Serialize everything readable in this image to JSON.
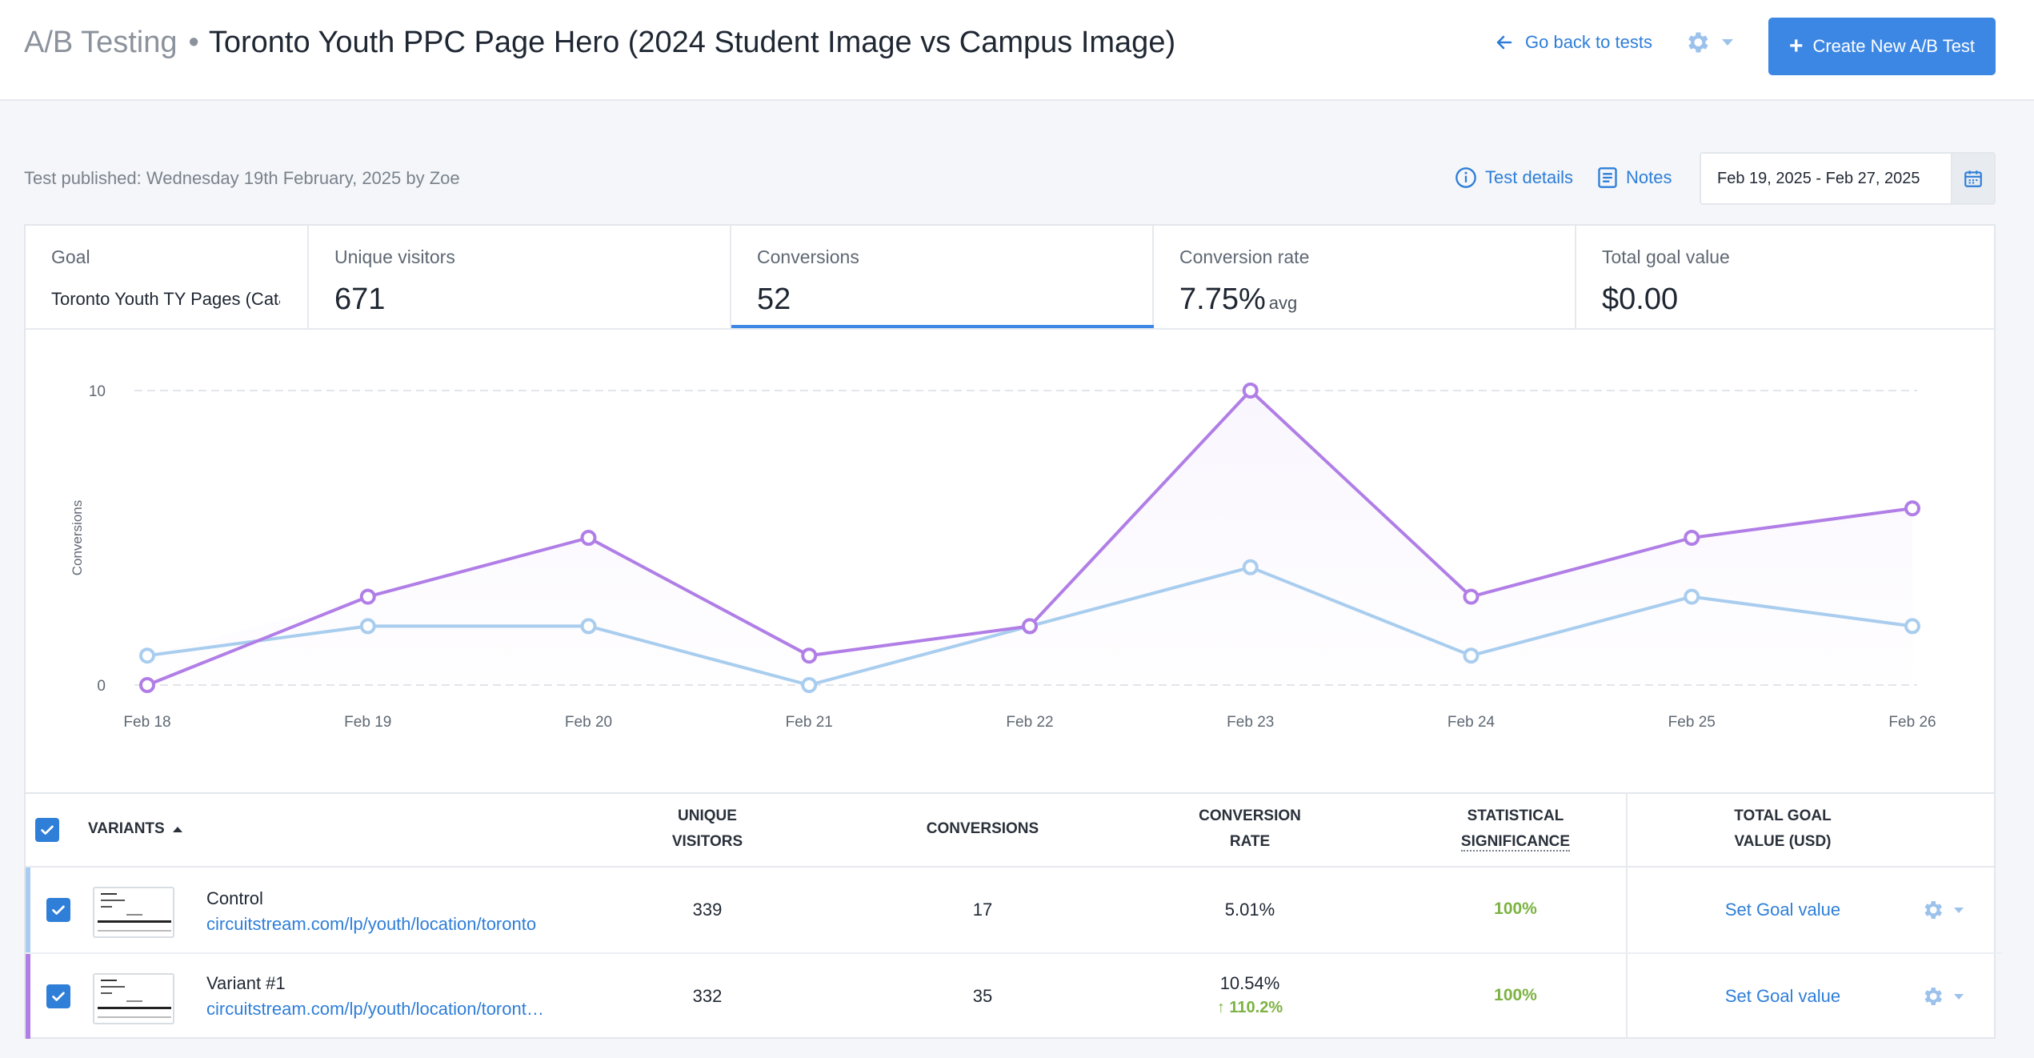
{
  "header": {
    "section": "A/B Testing",
    "separator": "•",
    "test_title": "Toronto Youth PPC Page Hero (2024 Student Image vs Campus Image)",
    "back_label": "Go back to tests",
    "create_label": "Create New A/B Test"
  },
  "subheader": {
    "published": "Test published: Wednesday 19th February, 2025 by Zoe",
    "test_details_label": "Test details",
    "notes_label": "Notes",
    "date_range": "Feb 19, 2025 - Feb 27, 2025"
  },
  "stats": {
    "goal_label": "Goal",
    "goal_value": "Toronto Youth TY Pages (Catalog)",
    "visitors_label": "Unique visitors",
    "visitors_value": "671",
    "conversions_label": "Conversions",
    "conversions_value": "52",
    "rate_label": "Conversion rate",
    "rate_value": "7.75%",
    "rate_suffix": "avg",
    "goal_value_label": "Total goal value",
    "goal_value_value": "$0.00"
  },
  "chart_data": {
    "type": "line",
    "ylabel": "Conversions",
    "xlabel": "",
    "ylim": [
      0,
      10
    ],
    "yticks": [
      "0",
      "10"
    ],
    "categories": [
      "Feb 18",
      "Feb 19",
      "Feb 20",
      "Feb 21",
      "Feb 22",
      "Feb 23",
      "Feb 24",
      "Feb 25",
      "Feb 26"
    ],
    "series": [
      {
        "color": "#a8cdee",
        "values": [
          1,
          2,
          2,
          0,
          2,
          4,
          1,
          3,
          2
        ]
      },
      {
        "color": "#b07ee6",
        "values": [
          0,
          3,
          5,
          1,
          2,
          10,
          3,
          5,
          6
        ]
      }
    ]
  },
  "table": {
    "headers": {
      "variants": "VARIANTS",
      "visitors_1": "UNIQUE",
      "visitors_2": "VISITORS",
      "conversions": "CONVERSIONS",
      "rate_1": "CONVERSION",
      "rate_2": "RATE",
      "sig_1": "STATISTICAL",
      "sig_2": "SIGNIFICANCE",
      "goal_1": "TOTAL GOAL",
      "goal_2": "VALUE (USD)"
    },
    "rows": [
      {
        "name": "Control",
        "url": "circuitstream.com/lp/youth/location/toronto",
        "visitors": "339",
        "conversions": "17",
        "rate": "5.01%",
        "lift": "",
        "significance": "100%",
        "goal_action": "Set Goal value",
        "color": "#a8cdee"
      },
      {
        "name": "Variant #1",
        "url": "circuitstream.com/lp/youth/location/toront…",
        "visitors": "332",
        "conversions": "35",
        "rate": "10.54%",
        "lift": "↑ 110.2%",
        "significance": "100%",
        "goal_action": "Set Goal value",
        "color": "#b07ee6"
      }
    ]
  }
}
